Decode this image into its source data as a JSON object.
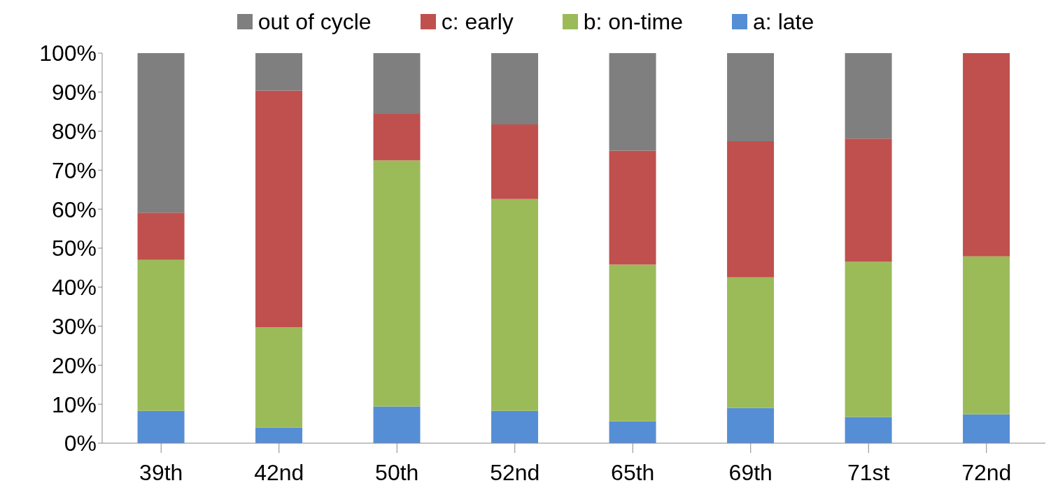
{
  "chart_data": {
    "type": "bar",
    "stacked": true,
    "categories": [
      "39th",
      "42nd",
      "50th",
      "52nd",
      "65th",
      "69th",
      "71st",
      "72nd"
    ],
    "series": [
      {
        "name": "a: late",
        "color": "#558ed5",
        "values": [
          8.3,
          4.0,
          9.4,
          8.3,
          5.6,
          9.0,
          6.7,
          7.4
        ]
      },
      {
        "name": "b: on-time",
        "color": "#9bbb59",
        "values": [
          38.7,
          25.7,
          63.1,
          54.3,
          40.2,
          33.5,
          39.8,
          40.5
        ]
      },
      {
        "name": "c: early",
        "color": "#c0504d",
        "values": [
          12.1,
          60.7,
          11.9,
          19.1,
          29.2,
          34.9,
          31.6,
          52.1
        ]
      },
      {
        "name": "out of cycle",
        "color": "#7f7f7f",
        "values": [
          40.9,
          9.6,
          15.6,
          18.3,
          25.0,
          22.6,
          21.9,
          0
        ]
      }
    ],
    "ylim": [
      0,
      100
    ],
    "yticks": [
      {
        "value": 0,
        "label": "0%"
      },
      {
        "value": 10,
        "label": "10%"
      },
      {
        "value": 20,
        "label": "20%"
      },
      {
        "value": 30,
        "label": "30%"
      },
      {
        "value": 40,
        "label": "40%"
      },
      {
        "value": 50,
        "label": "50%"
      },
      {
        "value": 60,
        "label": "60%"
      },
      {
        "value": 70,
        "label": "70%"
      },
      {
        "value": 80,
        "label": "80%"
      },
      {
        "value": 90,
        "label": "90%"
      },
      {
        "value": 100,
        "label": "100%"
      }
    ],
    "legend": "top"
  }
}
